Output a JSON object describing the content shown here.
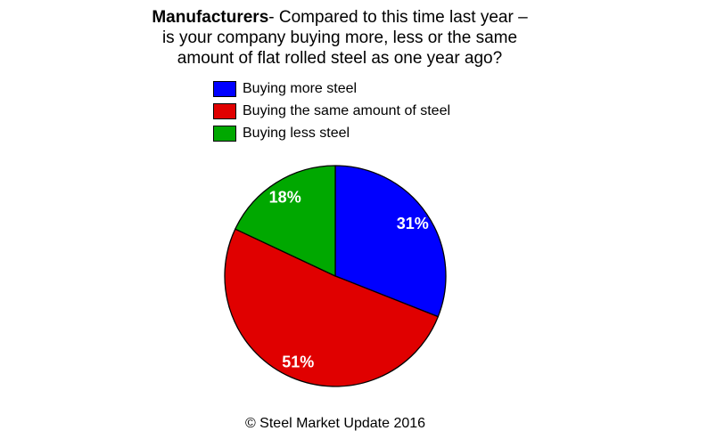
{
  "title": {
    "line1_bold": "Manufacturers",
    "line1_rest": "- Compared to this time last year –",
    "line2": "is your company buying more, less or the same",
    "line3": "amount of flat rolled steel as one year ago?"
  },
  "legend": {
    "items": [
      {
        "label": "Buying more steel",
        "color": "#0000FF"
      },
      {
        "label": "Buying the same amount of steel",
        "color": "#E00000"
      },
      {
        "label": "Buying less steel",
        "color": "#00A800"
      }
    ]
  },
  "chart_data": {
    "type": "pie",
    "title": "Manufacturers- Compared to this time last year – is your company buying more, less or the same amount of flat rolled steel as one year ago?",
    "slices": [
      {
        "label": "Buying more steel",
        "value": 31,
        "display": "31%",
        "color": "#0000FF"
      },
      {
        "label": "Buying the same amount of steel",
        "value": 51,
        "display": "51%",
        "color": "#E00000"
      },
      {
        "label": "Buying less steel",
        "value": 18,
        "display": "18%",
        "color": "#00A800"
      }
    ],
    "start_angle_deg": 0,
    "direction": "clockwise",
    "label_color": "#FFFFFF",
    "outline_color": "#000000",
    "legend_position": "top"
  },
  "footer": {
    "text": "© Steel Market Update 2016"
  }
}
